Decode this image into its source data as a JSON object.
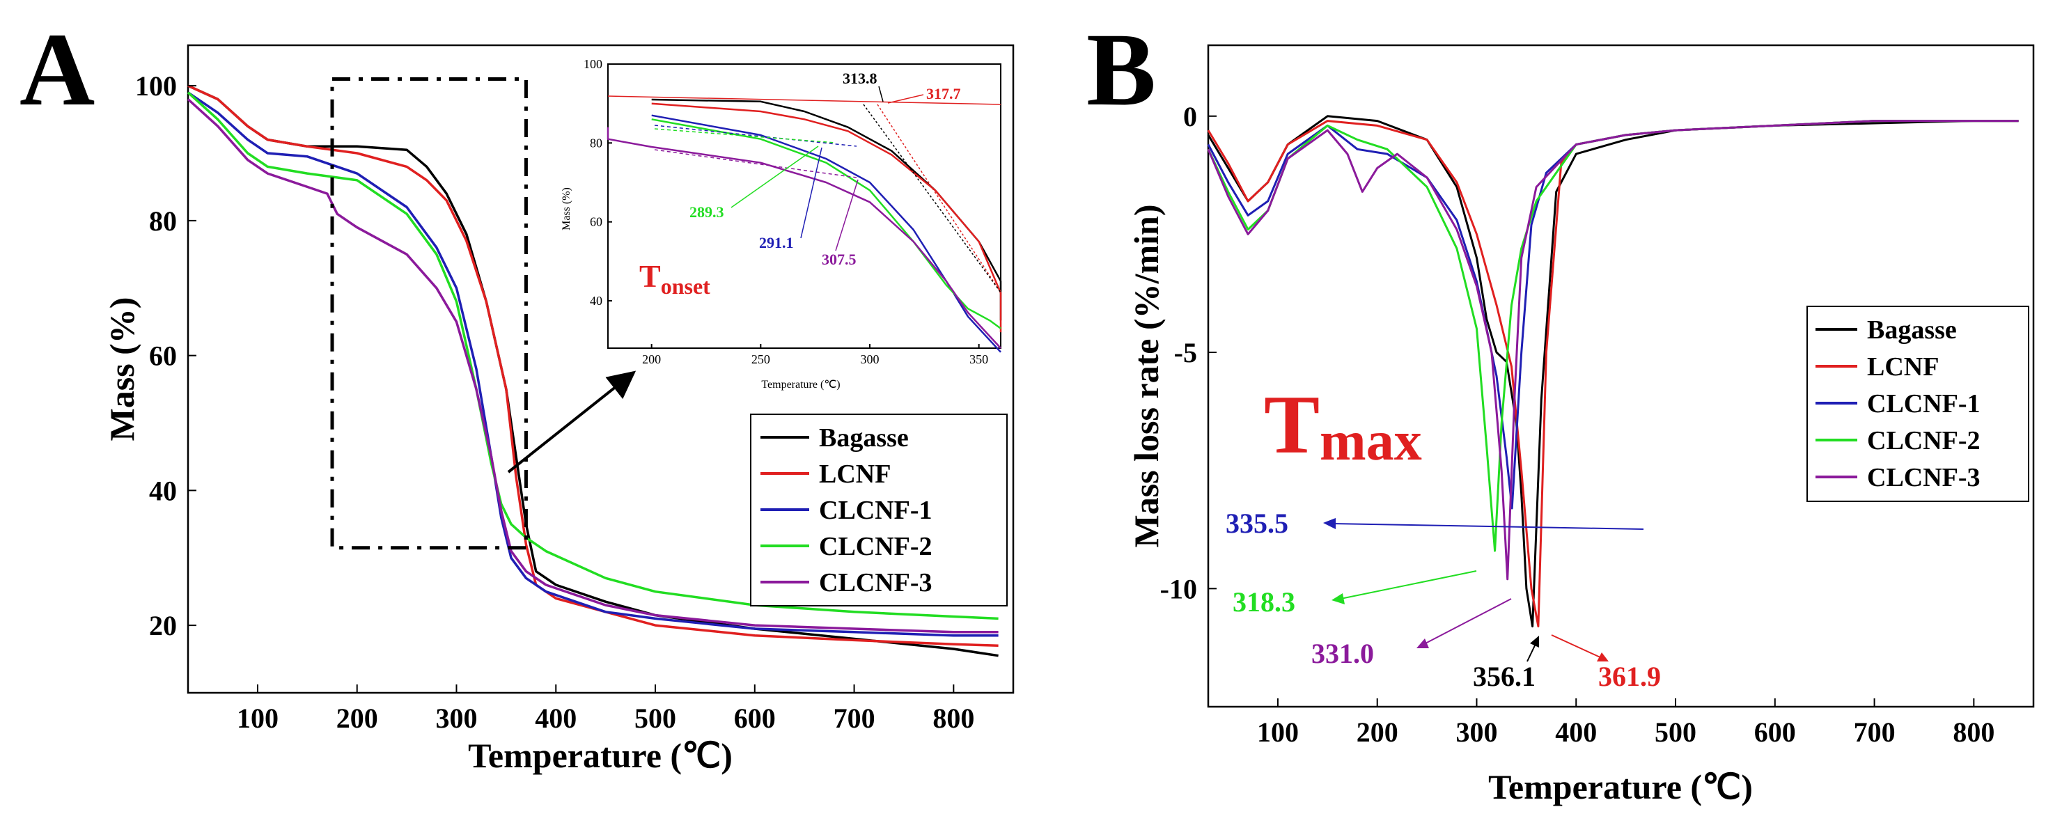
{
  "figure": {
    "panels": [
      "A",
      "B"
    ]
  },
  "colors": {
    "Bagasse": "#000000",
    "LCNF": "#e02020",
    "CLCNF-1": "#1f1fb4",
    "CLCNF-2": "#22dd22",
    "CLCNF-3": "#8b1a9b"
  },
  "chart_data": [
    {
      "type": "line",
      "panel": "A",
      "title": "",
      "xlabel": "Temperature (℃)",
      "ylabel": "Mass (%)",
      "xlim": [
        30,
        860
      ],
      "ylim": [
        10,
        106
      ],
      "xticks": [
        100,
        200,
        300,
        400,
        500,
        600,
        700,
        800
      ],
      "yticks": [
        20,
        40,
        60,
        80,
        100
      ],
      "legend": [
        "Bagasse",
        "LCNF",
        "CLCNF-1",
        "CLCNF-2",
        "CLCNF-3"
      ],
      "series": [
        {
          "name": "Bagasse",
          "x": [
            30,
            60,
            90,
            110,
            150,
            200,
            250,
            270,
            290,
            310,
            330,
            350,
            360,
            370,
            380,
            400,
            450,
            500,
            600,
            700,
            800,
            845
          ],
          "y": [
            100,
            98,
            94,
            92,
            91,
            91,
            90.5,
            88,
            84,
            78,
            68,
            55,
            45,
            35,
            28,
            26,
            23.5,
            21.5,
            19.5,
            18,
            16.5,
            15.5
          ]
        },
        {
          "name": "LCNF",
          "x": [
            30,
            60,
            90,
            110,
            150,
            200,
            250,
            270,
            290,
            310,
            330,
            350,
            360,
            370,
            380,
            400,
            450,
            500,
            600,
            700,
            800,
            845
          ],
          "y": [
            100,
            98,
            94,
            92,
            91,
            90,
            88,
            86,
            83,
            77,
            68,
            55,
            42,
            32,
            26,
            24,
            22,
            20,
            18.5,
            17.8,
            17.2,
            17
          ]
        },
        {
          "name": "CLCNF-1",
          "x": [
            30,
            60,
            90,
            110,
            150,
            200,
            250,
            280,
            300,
            320,
            335,
            345,
            355,
            370,
            390,
            450,
            500,
            600,
            700,
            800,
            845
          ],
          "y": [
            99,
            96,
            92,
            90,
            89.5,
            87,
            82,
            76,
            70,
            58,
            45,
            36,
            30,
            27,
            25,
            22,
            21,
            19.5,
            19,
            18.5,
            18.5
          ]
        },
        {
          "name": "CLCNF-2",
          "x": [
            30,
            60,
            90,
            110,
            150,
            200,
            250,
            280,
            300,
            320,
            335,
            345,
            355,
            370,
            390,
            450,
            500,
            600,
            700,
            800,
            845
          ],
          "y": [
            99,
            95,
            90,
            88,
            87,
            86,
            81,
            75,
            68,
            55,
            44,
            38,
            35,
            33,
            31,
            27,
            25,
            23,
            22,
            21.3,
            21
          ]
        },
        {
          "name": "CLCNF-3",
          "x": [
            30,
            60,
            90,
            110,
            150,
            170,
            180,
            200,
            250,
            280,
            300,
            320,
            335,
            345,
            355,
            370,
            390,
            450,
            500,
            600,
            700,
            800,
            845
          ],
          "y": [
            98,
            94,
            89,
            87,
            85,
            84,
            81,
            79,
            75,
            70,
            65,
            55,
            45,
            37,
            31,
            28,
            26,
            23,
            21.5,
            20,
            19.5,
            19,
            19
          ]
        }
      ],
      "annotation_box": {
        "x": [
          175,
          370
        ],
        "y": [
          31.5,
          101
        ]
      }
    },
    {
      "type": "line",
      "panel": "A-inset",
      "xlabel": "Temperature (℃)",
      "ylabel": "Mass (%)",
      "xlim": [
        180,
        360
      ],
      "ylim": [
        28,
        100
      ],
      "xticks": [
        200,
        250,
        300,
        350
      ],
      "yticks": [
        40,
        60,
        80,
        100
      ],
      "label": "Tonset",
      "onset_values": [
        {
          "name": "Bagasse",
          "value": "313.8"
        },
        {
          "name": "LCNF",
          "value": "317.7"
        },
        {
          "name": "CLCNF-2",
          "value": "289.3"
        },
        {
          "name": "CLCNF-1",
          "value": "291.1"
        },
        {
          "name": "CLCNF-3",
          "value": "307.5"
        }
      ]
    },
    {
      "type": "line",
      "panel": "B",
      "title": "",
      "xlabel": "Temperature (℃)",
      "ylabel": "Mass loss rate (%/min)",
      "xlim": [
        30,
        860
      ],
      "ylim": [
        -12.5,
        1.5
      ],
      "xticks": [
        100,
        200,
        300,
        400,
        500,
        600,
        700,
        800
      ],
      "yticks": [
        0,
        -5,
        -10
      ],
      "ytick_labels": [
        "0",
        "-5",
        "-10"
      ],
      "legend": [
        "Bagasse",
        "LCNF",
        "CLCNF-1",
        "CLCNF-2",
        "CLCNF-3"
      ],
      "label": "Tmax",
      "series": [
        {
          "name": "Bagasse",
          "x": [
            30,
            50,
            70,
            90,
            110,
            150,
            200,
            250,
            280,
            300,
            310,
            320,
            330,
            340,
            345,
            350,
            356.1,
            365,
            380,
            400,
            450,
            500,
            600,
            700,
            800,
            845
          ],
          "y": [
            -0.4,
            -1.1,
            -1.8,
            -1.4,
            -0.6,
            0,
            -0.1,
            -0.5,
            -1.5,
            -3,
            -4.3,
            -5,
            -5.2,
            -6.5,
            -8,
            -10,
            -10.8,
            -6,
            -1.6,
            -0.8,
            -0.5,
            -0.3,
            -0.2,
            -0.15,
            -0.1,
            -0.1
          ]
        },
        {
          "name": "LCNF",
          "x": [
            30,
            50,
            70,
            90,
            110,
            150,
            200,
            250,
            280,
            300,
            320,
            335,
            345,
            355,
            361.9,
            370,
            385,
            400,
            450,
            500,
            600,
            700,
            800,
            845
          ],
          "y": [
            -0.3,
            -1,
            -1.8,
            -1.4,
            -0.6,
            -0.1,
            -0.2,
            -0.5,
            -1.4,
            -2.5,
            -4,
            -5.3,
            -7.5,
            -10,
            -10.8,
            -5,
            -1,
            -0.6,
            -0.4,
            -0.3,
            -0.2,
            -0.1,
            -0.1,
            -0.1
          ]
        },
        {
          "name": "CLCNF-1",
          "x": [
            30,
            50,
            70,
            90,
            110,
            150,
            180,
            210,
            250,
            280,
            300,
            320,
            330,
            335.5,
            345,
            355,
            370,
            400,
            450,
            500,
            600,
            700,
            800,
            845
          ],
          "y": [
            -0.6,
            -1.4,
            -2.1,
            -1.8,
            -0.8,
            -0.2,
            -0.7,
            -0.8,
            -1.3,
            -2.2,
            -3.5,
            -5.5,
            -7.2,
            -8.3,
            -5,
            -2.3,
            -1.2,
            -0.6,
            -0.4,
            -0.3,
            -0.2,
            -0.1,
            -0.1,
            -0.1
          ]
        },
        {
          "name": "CLCNF-2",
          "x": [
            30,
            50,
            70,
            90,
            110,
            150,
            180,
            210,
            250,
            280,
            300,
            310,
            318.3,
            325,
            335,
            345,
            360,
            400,
            450,
            500,
            600,
            700,
            800,
            845
          ],
          "y": [
            -0.7,
            -1.6,
            -2.4,
            -2,
            -0.9,
            -0.2,
            -0.5,
            -0.7,
            -1.5,
            -2.8,
            -4.5,
            -7,
            -9.2,
            -6.5,
            -4,
            -2.8,
            -1.8,
            -0.6,
            -0.4,
            -0.3,
            -0.2,
            -0.1,
            -0.1,
            -0.1
          ]
        },
        {
          "name": "CLCNF-3",
          "x": [
            30,
            50,
            70,
            90,
            110,
            150,
            170,
            185,
            200,
            220,
            250,
            280,
            300,
            315,
            325,
            331,
            338,
            345,
            360,
            400,
            450,
            500,
            600,
            700,
            800,
            845
          ],
          "y": [
            -0.7,
            -1.7,
            -2.5,
            -2,
            -0.9,
            -0.3,
            -0.8,
            -1.6,
            -1.1,
            -0.8,
            -1.3,
            -2.4,
            -3.6,
            -5,
            -7.5,
            -9.8,
            -6,
            -3,
            -1.5,
            -0.6,
            -0.4,
            -0.3,
            -0.2,
            -0.1,
            -0.1,
            -0.1
          ]
        }
      ],
      "tmax_values": [
        {
          "name": "CLCNF-1",
          "value": "335.5"
        },
        {
          "name": "CLCNF-2",
          "value": "318.3"
        },
        {
          "name": "CLCNF-3",
          "value": "331.0"
        },
        {
          "name": "Bagasse",
          "value": "356.1"
        },
        {
          "name": "LCNF",
          "value": "361.9"
        }
      ]
    }
  ]
}
